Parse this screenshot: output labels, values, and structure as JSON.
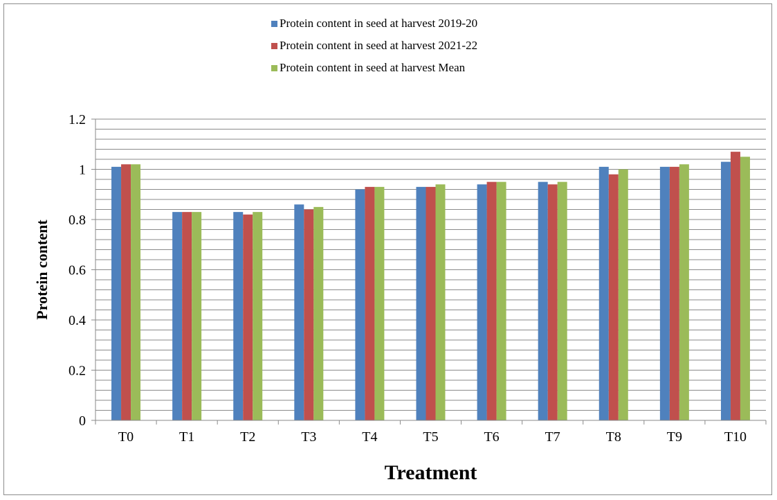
{
  "chart_data": {
    "type": "bar",
    "categories": [
      "T0",
      "T1",
      "T2",
      "T3",
      "T4",
      "T5",
      "T6",
      "T7",
      "T8",
      "T9",
      "T10"
    ],
    "series": [
      {
        "name": "Protein content in seed at harvest  2019-20",
        "color": "#4f81bd",
        "values": [
          1.01,
          0.83,
          0.83,
          0.86,
          0.92,
          0.93,
          0.94,
          0.95,
          1.01,
          1.01,
          1.03
        ]
      },
      {
        "name": "Protein content in seed at harvest  2021-22",
        "color": "#c0504d",
        "values": [
          1.02,
          0.83,
          0.82,
          0.84,
          0.93,
          0.93,
          0.95,
          0.94,
          0.98,
          1.01,
          1.07
        ]
      },
      {
        "name": "Protein content in seed at harvest  Mean",
        "color": "#9bbb59",
        "values": [
          1.02,
          0.83,
          0.83,
          0.85,
          0.93,
          0.94,
          0.95,
          0.95,
          1.0,
          1.02,
          1.05
        ]
      }
    ],
    "xlabel": "Treatment",
    "ylabel": "Protein content",
    "ylim": [
      0,
      1.2
    ],
    "yticks": [
      "0",
      "0.2",
      "0.4",
      "0.6",
      "0.8",
      "1",
      "1.2"
    ],
    "grid": true,
    "legend_position": "top"
  }
}
